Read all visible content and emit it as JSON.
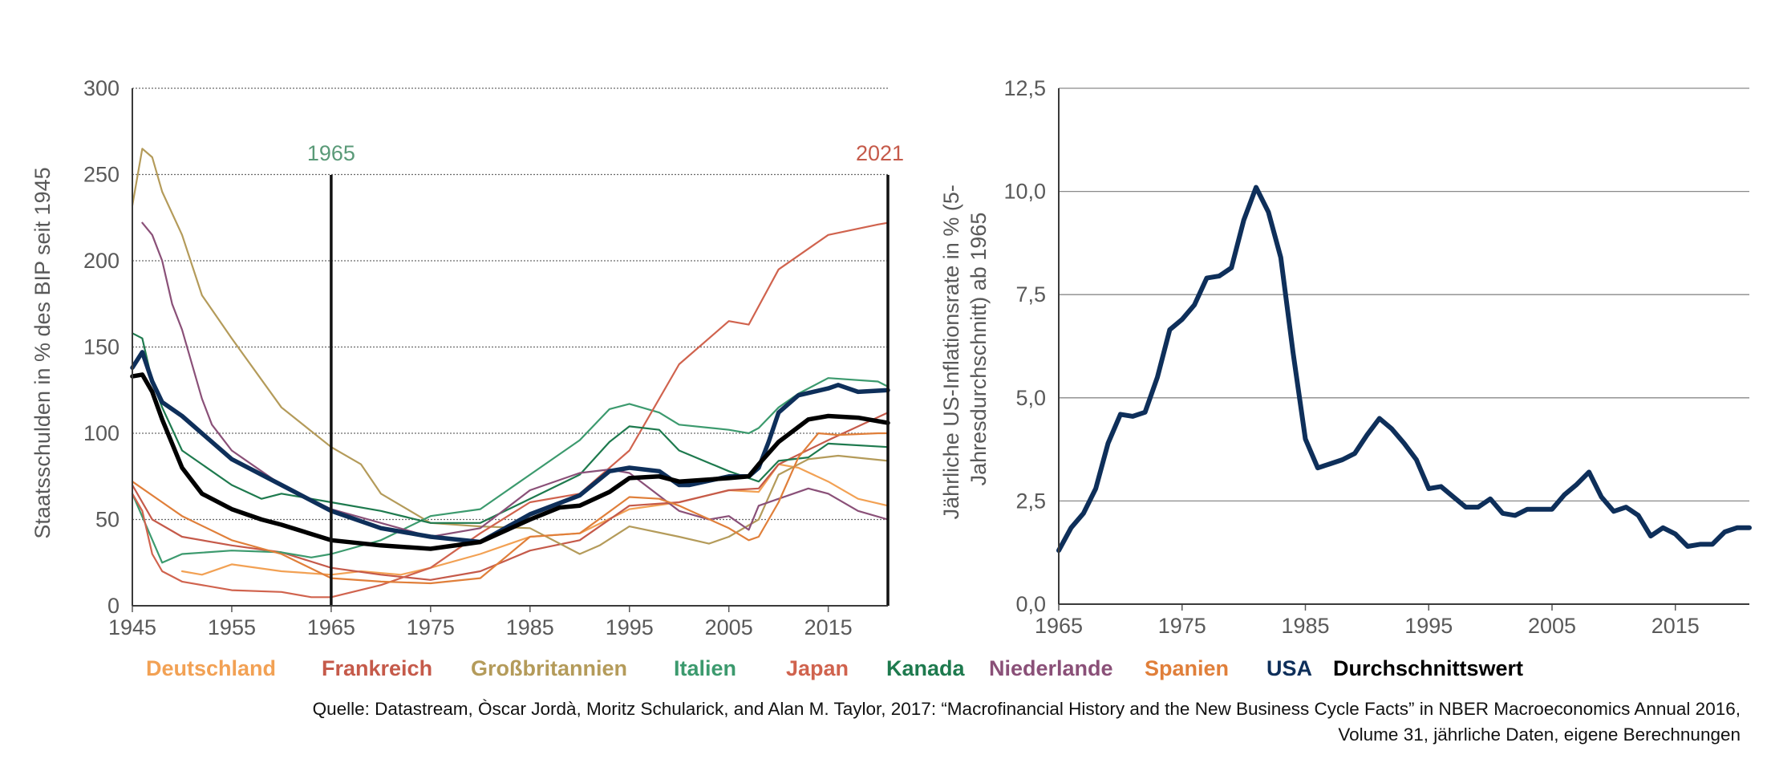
{
  "chart_data": [
    {
      "type": "line",
      "title": "",
      "xlabel": "",
      "ylabel": "Staatsschulden in % des BIP seit 1945",
      "xlim": [
        1945,
        2021
      ],
      "ylim": [
        0,
        300
      ],
      "xticks": [
        "1945",
        "1955",
        "1965",
        "1975",
        "1985",
        "1995",
        "2005",
        "2015"
      ],
      "yticks": [
        "0",
        "50",
        "100",
        "150",
        "200",
        "250",
        "300"
      ],
      "grid": "horizontal dotted",
      "legend_position": "bottom",
      "annotations": [
        {
          "text": "1965",
          "x": 1965,
          "color": "#5a9a78"
        },
        {
          "text": "2021",
          "x": 2021,
          "color": "#c55a4a"
        }
      ],
      "series": [
        {
          "name": "Deutschland",
          "color": "#f2a154",
          "width": 2.2,
          "x": [
            1950,
            1952,
            1955,
            1960,
            1965,
            1968,
            1972,
            1975,
            1980,
            1985,
            1990,
            1995,
            2000,
            2005,
            2008,
            2010,
            2012,
            2015,
            2018,
            2021
          ],
          "y": [
            20,
            18,
            24,
            20,
            18,
            20,
            18,
            22,
            30,
            40,
            42,
            56,
            60,
            67,
            66,
            82,
            80,
            72,
            62,
            58
          ]
        },
        {
          "name": "Frankreich",
          "color": "#c55a4a",
          "width": 2.2,
          "x": [
            1945,
            1947,
            1950,
            1955,
            1960,
            1965,
            1970,
            1975,
            1980,
            1985,
            1990,
            1995,
            2000,
            2005,
            2008,
            2010,
            2015,
            2021
          ],
          "y": [
            70,
            50,
            40,
            35,
            31,
            22,
            18,
            15,
            20,
            32,
            38,
            58,
            60,
            67,
            68,
            82,
            96,
            112
          ]
        },
        {
          "name": "Großbritannien",
          "color": "#b49b5a",
          "width": 2.2,
          "x": [
            1945,
            1946,
            1947,
            1948,
            1950,
            1952,
            1955,
            1960,
            1965,
            1968,
            1970,
            1975,
            1980,
            1985,
            1990,
            1992,
            1995,
            2000,
            2003,
            2005,
            2008,
            2010,
            2013,
            2016,
            2021
          ],
          "y": [
            232,
            265,
            260,
            240,
            215,
            180,
            155,
            115,
            92,
            82,
            65,
            48,
            46,
            45,
            30,
            35,
            46,
            40,
            36,
            40,
            50,
            76,
            85,
            87,
            84
          ]
        },
        {
          "name": "Italien",
          "color": "#3c9a6e",
          "width": 2.2,
          "x": [
            1945,
            1948,
            1950,
            1955,
            1960,
            1963,
            1965,
            1970,
            1975,
            1980,
            1985,
            1990,
            1993,
            1995,
            1998,
            2000,
            2005,
            2007,
            2008,
            2010,
            2012,
            2015,
            2020,
            2021
          ],
          "y": [
            65,
            25,
            30,
            32,
            31,
            28,
            30,
            38,
            52,
            56,
            76,
            96,
            114,
            117,
            112,
            105,
            102,
            100,
            103,
            115,
            123,
            132,
            130,
            127
          ]
        },
        {
          "name": "Japan",
          "color": "#d0634e",
          "width": 2.2,
          "x": [
            1945,
            1946,
            1947,
            1948,
            1950,
            1955,
            1960,
            1963,
            1965,
            1970,
            1975,
            1980,
            1985,
            1990,
            1995,
            2000,
            2005,
            2007,
            2010,
            2015,
            2020,
            2021
          ],
          "y": [
            65,
            55,
            30,
            20,
            14,
            9,
            8,
            5,
            5,
            12,
            22,
            42,
            60,
            65,
            90,
            140,
            165,
            163,
            195,
            215,
            221,
            222
          ]
        },
        {
          "name": "Kanada",
          "color": "#1e7a4e",
          "width": 2.2,
          "x": [
            1945,
            1946,
            1947,
            1948,
            1950,
            1955,
            1958,
            1960,
            1965,
            1970,
            1975,
            1980,
            1985,
            1990,
            1993,
            1995,
            1998,
            2000,
            2005,
            2008,
            2010,
            2013,
            2015,
            2021
          ],
          "y": [
            158,
            155,
            130,
            115,
            90,
            70,
            62,
            65,
            60,
            55,
            48,
            48,
            62,
            76,
            95,
            104,
            102,
            90,
            78,
            72,
            84,
            86,
            94,
            92
          ]
        },
        {
          "name": "Niederlande",
          "color": "#8a5078",
          "width": 2.2,
          "x": [
            1946,
            1947,
            1948,
            1949,
            1950,
            1951,
            1952,
            1953,
            1955,
            1958,
            1960,
            1965,
            1970,
            1975,
            1980,
            1985,
            1990,
            1993,
            1995,
            2000,
            2003,
            2005,
            2007,
            2008,
            2010,
            2013,
            2015,
            2018,
            2021
          ],
          "y": [
            222,
            215,
            200,
            175,
            160,
            140,
            120,
            105,
            90,
            78,
            70,
            56,
            48,
            40,
            45,
            67,
            77,
            79,
            77,
            55,
            50,
            52,
            44,
            58,
            62,
            68,
            65,
            55,
            50
          ]
        },
        {
          "name": "Spanien",
          "color": "#e07f3a",
          "width": 2.2,
          "x": [
            1945,
            1948,
            1950,
            1955,
            1960,
            1965,
            1970,
            1975,
            1980,
            1985,
            1990,
            1995,
            1998,
            2000,
            2005,
            2007,
            2008,
            2010,
            2012,
            2014,
            2016,
            2020,
            2021
          ],
          "y": [
            72,
            60,
            52,
            38,
            30,
            16,
            14,
            13,
            16,
            40,
            42,
            63,
            62,
            58,
            45,
            38,
            40,
            60,
            86,
            100,
            99,
            100,
            100
          ]
        },
        {
          "name": "USA",
          "color": "#0e2f5a",
          "width": 5.5,
          "x": [
            1945,
            1946,
            1947,
            1948,
            1950,
            1955,
            1960,
            1965,
            1970,
            1975,
            1980,
            1985,
            1990,
            1993,
            1995,
            1998,
            2000,
            2001,
            2005,
            2007,
            2008,
            2009,
            2010,
            2012,
            2015,
            2016,
            2018,
            2021
          ],
          "y": [
            138,
            147,
            130,
            118,
            110,
            85,
            70,
            55,
            45,
            40,
            37,
            53,
            64,
            78,
            80,
            78,
            70,
            70,
            75,
            75,
            80,
            95,
            112,
            122,
            126,
            128,
            124,
            125
          ]
        },
        {
          "name": "Durchschnittswert",
          "color": "#000000",
          "width": 5.5,
          "x": [
            1945,
            1946,
            1947,
            1948,
            1950,
            1952,
            1955,
            1958,
            1960,
            1965,
            1970,
            1975,
            1980,
            1985,
            1988,
            1990,
            1993,
            1995,
            1998,
            2000,
            2005,
            2007,
            2008,
            2010,
            2013,
            2015,
            2018,
            2021
          ],
          "y": [
            133,
            134,
            124,
            108,
            80,
            65,
            56,
            50,
            47,
            38,
            35,
            33,
            37,
            50,
            57,
            58,
            66,
            74,
            75,
            72,
            74,
            75,
            82,
            95,
            108,
            110,
            109,
            106
          ]
        }
      ]
    },
    {
      "type": "line",
      "title": "",
      "xlabel": "",
      "ylabel": "Jährliche US-Inflationsrate in % (5-Jahresdurchschnitt) ab 1965",
      "xlim": [
        1965,
        2021
      ],
      "ylim": [
        0,
        12.5
      ],
      "xticks": [
        "1965",
        "1975",
        "1985",
        "1995",
        "2005",
        "2015"
      ],
      "yticks": [
        "0,0",
        "2,5",
        "5,0",
        "7,5",
        "10,0",
        "12,5"
      ],
      "grid": "horizontal solid",
      "series": [
        {
          "name": "",
          "color": "#0e2f5a",
          "width": 6,
          "x": [
            1965,
            1966,
            1967,
            1968,
            1969,
            1970,
            1971,
            1972,
            1973,
            1974,
            1975,
            1976,
            1977,
            1978,
            1979,
            1980,
            1981,
            1982,
            1983,
            1984,
            1985,
            1986,
            1987,
            1988,
            1989,
            1990,
            1991,
            1992,
            1993,
            1994,
            1995,
            1996,
            1997,
            1998,
            1999,
            2000,
            2001,
            2002,
            2003,
            2004,
            2005,
            2006,
            2007,
            2008,
            2009,
            2010,
            2011,
            2012,
            2013,
            2014,
            2015,
            2016,
            2017,
            2018,
            2019,
            2020,
            2021
          ],
          "y": [
            1.3,
            1.85,
            2.2,
            2.8,
            3.9,
            4.6,
            4.55,
            4.65,
            5.5,
            6.65,
            6.9,
            7.25,
            7.9,
            7.95,
            8.15,
            9.3,
            10.1,
            9.5,
            8.4,
            6.1,
            4.0,
            3.3,
            3.4,
            3.5,
            3.65,
            4.1,
            4.5,
            4.25,
            3.9,
            3.5,
            2.8,
            2.85,
            2.6,
            2.35,
            2.35,
            2.55,
            2.2,
            2.15,
            2.3,
            2.3,
            2.3,
            2.65,
            2.9,
            3.2,
            2.6,
            2.25,
            2.35,
            2.15,
            1.65,
            1.85,
            1.7,
            1.4,
            1.45,
            1.45,
            1.75,
            1.85,
            1.85
          ]
        }
      ]
    }
  ],
  "legend": {
    "items": [
      {
        "label": "Deutschland",
        "color": "#f2a154"
      },
      {
        "label": "Frankreich",
        "color": "#c55a4a"
      },
      {
        "label": "Großbritannien",
        "color": "#b49b5a"
      },
      {
        "label": "Italien",
        "color": "#3c9a6e"
      },
      {
        "label": "Japan",
        "color": "#d0634e"
      },
      {
        "label": "Kanada",
        "color": "#1e7a4e"
      },
      {
        "label": "Niederlande",
        "color": "#8a5078"
      },
      {
        "label": "Spanien",
        "color": "#e07f3a"
      },
      {
        "label": "USA",
        "color": "#0e2f5a"
      },
      {
        "label": "Durchschnittswert",
        "color": "#000000"
      }
    ]
  },
  "source": {
    "line1": "Quelle: Datastream, Òscar Jordà, Moritz Schularick, and Alan M. Taylor, 2017: “Macrofinancial History and the New Business Cycle Facts” in NBER Macroeconomics Annual 2016,",
    "line2": "Volume 31, jährliche Daten, eigene Berechnungen"
  }
}
